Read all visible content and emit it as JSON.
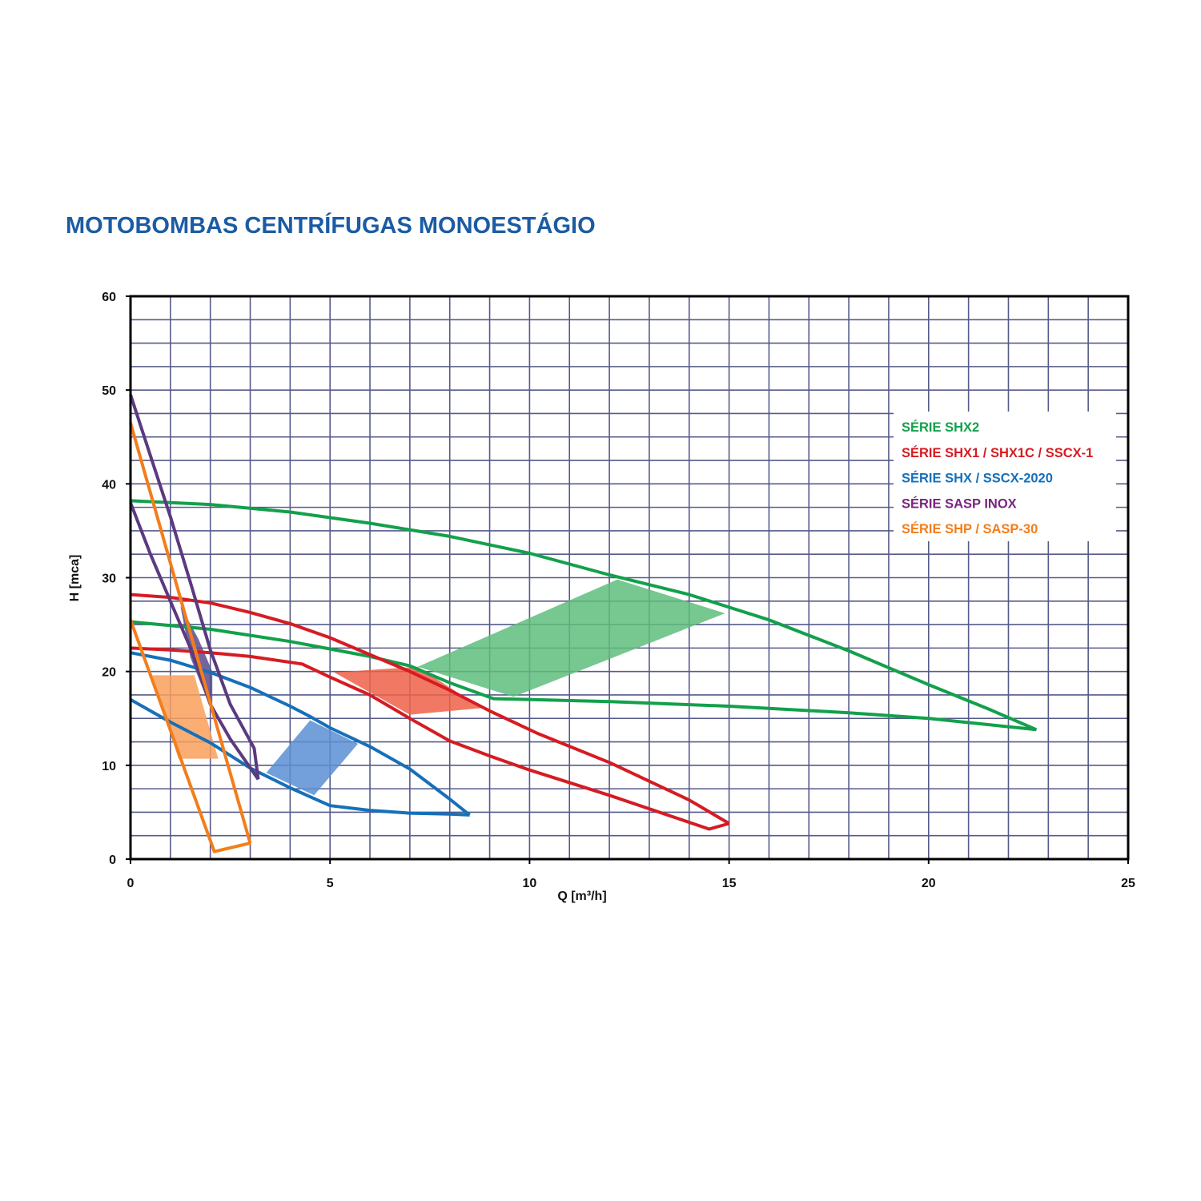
{
  "title": "MOTOBOMBAS CENTRÍFUGAS MONOESTÁGIO",
  "chart_data": {
    "type": "line",
    "title": "MOTOBOMBAS CENTRÍFUGAS MONOESTÁGIO",
    "xlabel": "Q [m³/h]",
    "ylabel": "H [mca]",
    "xlim": [
      0,
      25
    ],
    "ylim": [
      0,
      60
    ],
    "xticks": [
      0,
      5,
      10,
      15,
      20,
      25
    ],
    "yticks": [
      0,
      10,
      20,
      30,
      40,
      50,
      60
    ],
    "grid": {
      "x_step": 1,
      "y_step": 2.5,
      "color": "#555a8a"
    },
    "legend_position": "right",
    "series": [
      {
        "name": "SÉRIE SHX2",
        "color": "#13a04b",
        "upper": [
          [
            0,
            38.2
          ],
          [
            2,
            37.8
          ],
          [
            4,
            37
          ],
          [
            6,
            35.8
          ],
          [
            8,
            34.4
          ],
          [
            10,
            32.6
          ],
          [
            12,
            30.3
          ],
          [
            14,
            28.2
          ],
          [
            16,
            25.5
          ],
          [
            18,
            22.2
          ],
          [
            20,
            18.6
          ],
          [
            21.5,
            16
          ],
          [
            22.7,
            13.8
          ]
        ],
        "lower": [
          [
            0,
            25.3
          ],
          [
            2,
            24.5
          ],
          [
            4,
            23.2
          ],
          [
            6,
            21.6
          ],
          [
            7,
            20.6
          ],
          [
            8,
            18.8
          ],
          [
            9.1,
            17.1
          ],
          [
            12,
            16.8
          ],
          [
            15,
            16.3
          ],
          [
            18,
            15.6
          ],
          [
            20,
            15
          ],
          [
            22.7,
            13.8
          ]
        ],
        "region": [
          [
            7.2,
            20.5
          ],
          [
            12.2,
            29.8
          ],
          [
            14.9,
            26.2
          ],
          [
            9.6,
            17.3
          ]
        ],
        "region_color": "#5fbd7c"
      },
      {
        "name": "SÉRIE SHX1 / SHX1C / SSCX-1",
        "color": "#d51c22",
        "upper": [
          [
            0,
            28.2
          ],
          [
            1,
            27.9
          ],
          [
            2,
            27.3
          ],
          [
            3,
            26.3
          ],
          [
            4,
            25.1
          ],
          [
            5,
            23.6
          ],
          [
            6,
            21.8
          ],
          [
            7,
            20
          ],
          [
            8,
            18
          ],
          [
            9,
            15.8
          ],
          [
            10.2,
            13.4
          ],
          [
            12,
            10.3
          ],
          [
            14,
            6.3
          ],
          [
            15,
            3.8
          ]
        ],
        "lower": [
          [
            0,
            22.5
          ],
          [
            1,
            22.3
          ],
          [
            2,
            22
          ],
          [
            3,
            21.6
          ],
          [
            4.3,
            20.8
          ],
          [
            5,
            19.4
          ],
          [
            6,
            17.5
          ],
          [
            7,
            15
          ],
          [
            8,
            12.6
          ],
          [
            9,
            11
          ],
          [
            10,
            9.5
          ],
          [
            12,
            6.8
          ],
          [
            14.5,
            3.2
          ],
          [
            15,
            3.8
          ]
        ],
        "region": [
          [
            5.1,
            19.9
          ],
          [
            7.2,
            20.5
          ],
          [
            8.8,
            16.1
          ],
          [
            7,
            15.4
          ]
        ],
        "region_color": "#ee6249"
      },
      {
        "name": "SÉRIE SHX / SSCX-2020",
        "color": "#1670b9",
        "upper": [
          [
            0,
            22
          ],
          [
            1,
            21.2
          ],
          [
            2,
            19.9
          ],
          [
            3,
            18.3
          ],
          [
            4,
            16.3
          ],
          [
            4.5,
            15.2
          ],
          [
            5,
            14
          ],
          [
            6,
            12
          ],
          [
            7,
            9.6
          ],
          [
            8,
            6.4
          ],
          [
            8.5,
            4.7
          ]
        ],
        "lower": [
          [
            0,
            17
          ],
          [
            1,
            14.6
          ],
          [
            2,
            12.4
          ],
          [
            3,
            9.7
          ],
          [
            4,
            7.6
          ],
          [
            5,
            5.7
          ],
          [
            6,
            5.2
          ],
          [
            7,
            4.9
          ],
          [
            8,
            4.8
          ],
          [
            8.5,
            4.7
          ]
        ],
        "region": [
          [
            3.4,
            9.2
          ],
          [
            4.5,
            14.8
          ],
          [
            5.7,
            12.3
          ],
          [
            4.6,
            6.8
          ]
        ],
        "region_color": "#5a8fd3"
      },
      {
        "name": "SÉRIE SASP INOX",
        "color": "#5b3a80",
        "upper": [
          [
            0,
            49.5
          ],
          [
            0.5,
            43
          ],
          [
            1,
            36.5
          ],
          [
            1.5,
            29.5
          ],
          [
            2,
            22.3
          ],
          [
            2.5,
            16.5
          ],
          [
            3.1,
            11.8
          ],
          [
            3.2,
            8.5
          ]
        ],
        "lower": [
          [
            0,
            38
          ],
          [
            0.5,
            32.5
          ],
          [
            1,
            27.5
          ],
          [
            1.5,
            22.5
          ],
          [
            2,
            16.5
          ],
          [
            2.5,
            12.8
          ],
          [
            3.2,
            8.5
          ]
        ],
        "region": [
          [
            1.25,
            27
          ],
          [
            1.7,
            23.5
          ],
          [
            2.05,
            20
          ],
          [
            2.05,
            15.6
          ],
          [
            1.5,
            21.5
          ]
        ],
        "region_color": "#5a4a8c"
      },
      {
        "name": "SÉRIE SHP / SASP-30",
        "color": "#f27e1c",
        "upper": [
          [
            0,
            46.5
          ],
          [
            3,
            1.7
          ]
        ],
        "lower": [
          [
            0,
            25.5
          ],
          [
            2.1,
            0.8
          ],
          [
            3,
            1.7
          ]
        ],
        "region": [
          [
            0.55,
            19.6
          ],
          [
            1.6,
            19.6
          ],
          [
            2.2,
            10.7
          ],
          [
            1.2,
            10.7
          ]
        ],
        "region_color": "#f9a05c"
      }
    ]
  }
}
